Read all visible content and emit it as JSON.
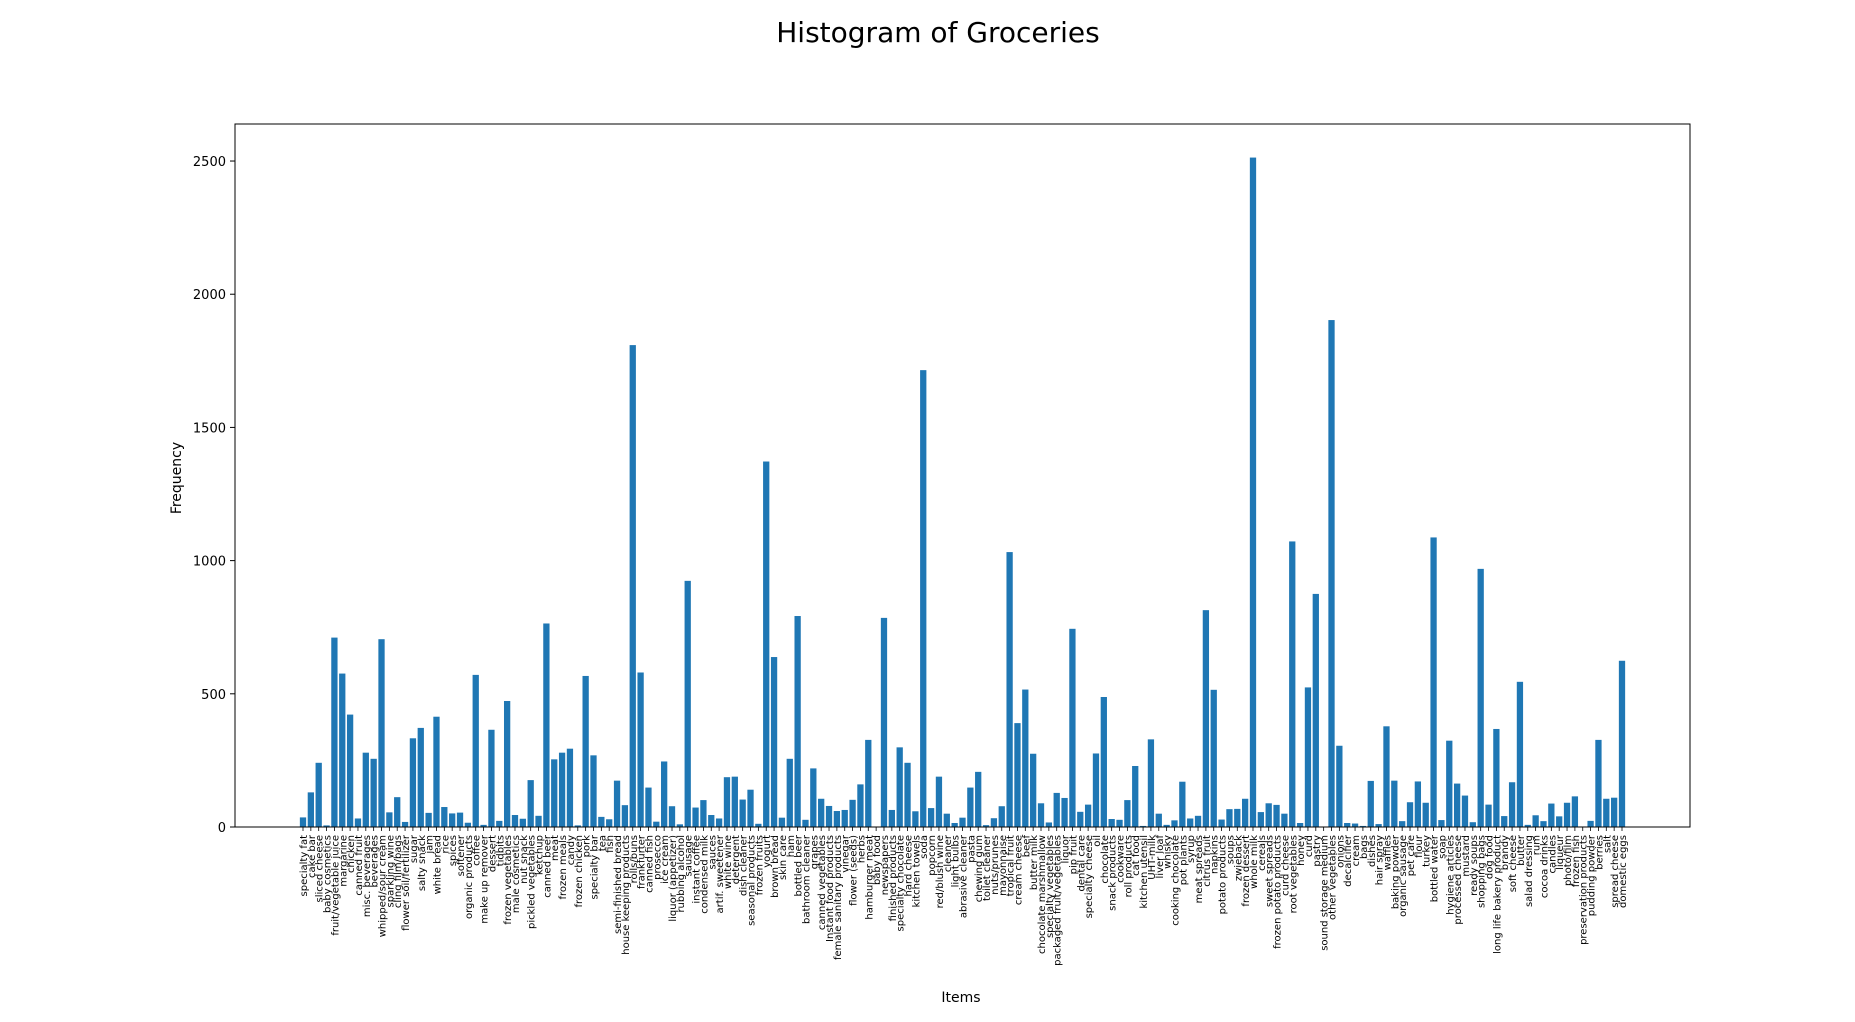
{
  "chart_data": {
    "type": "bar",
    "title": "Histogram of Groceries",
    "x_label": "Items",
    "y_label": "Frequency",
    "categories": [
      "specialty fat",
      "cake bar",
      "sliced cheese",
      "baby cosmetics",
      "fruit/vegetable juice",
      "margarine",
      "chicken",
      "canned fruit",
      "misc. beverages",
      "beverages",
      "whipped/sour cream",
      "sparkling wine",
      "cling film/bags",
      "flower soil/fertilizer",
      "sugar",
      "salty snack",
      "jam",
      "white bread",
      "rice",
      "spices",
      "softener",
      "organic products",
      "coffee",
      "make up remover",
      "dessert",
      "tidbits",
      "frozen vegetables",
      "male cosmetics",
      "nut snack",
      "pickled vegetables",
      "ketchup",
      "canned beer",
      "meat",
      "frozen meals",
      "candy",
      "frozen chicken",
      "pork",
      "specialty bar",
      "tea",
      "fish",
      "semi-finished bread",
      "house keeping products",
      "rolls/buns",
      "frankfurter",
      "canned fish",
      "prosecco",
      "ice cream",
      "liquor (appetizer)",
      "rubbing alcohol",
      "sausage",
      "instant coffee",
      "condensed milk",
      "sauces",
      "artif. sweetener",
      "white wine",
      "detergent",
      "dish cleaner",
      "seasonal products",
      "frozen fruits",
      "yogurt",
      "brown bread",
      "skin care",
      "ham",
      "bottled beer",
      "bathroom cleaner",
      "grapes",
      "canned vegetables",
      "Instant food products",
      "female sanitary products",
      "vinegar",
      "flower (seeds)",
      "herbs",
      "hamburger meat",
      "baby food",
      "newspapers",
      "finished products",
      "specialty chocolate",
      "hard cheese",
      "kitchen towels",
      "soda",
      "popcorn",
      "red/blush wine",
      "cleaner",
      "light bulbs",
      "abrasive cleaner",
      "pasta",
      "chewing gum",
      "toilet cleaner",
      "nuts/prunes",
      "mayonnaise",
      "tropical fruit",
      "cream cheese",
      "beef",
      "butter milk",
      "chocolate marshmallow",
      "specialty vegetables",
      "packaged fruit/vegetables",
      "liquor",
      "pip fruit",
      "dental care",
      "specialty cheese",
      "oil",
      "chocolate",
      "snack products",
      "cookware",
      "roll products",
      "cat food",
      "kitchen utensil",
      "UHT-milk",
      "liver loaf",
      "whisky",
      "cooking chocolate",
      "pot plants",
      "syrup",
      "meat spreads",
      "citrus fruit",
      "napkins",
      "potato products",
      "soups",
      "zwieback",
      "frozen dessert",
      "whole milk",
      "cereals",
      "sweet spreads",
      "frozen potato products",
      "curd cheese",
      "root vegetables",
      "honey",
      "curd",
      "pastry",
      "sound storage medium",
      "other vegetables",
      "onions",
      "decalcifier",
      "cream",
      "bags",
      "dishes",
      "hair spray",
      "waffles",
      "baking powder",
      "organic sausage",
      "pet care",
      "flour",
      "turkey",
      "bottled water",
      "soap",
      "hygiene articles",
      "processed cheese",
      "mustard",
      "ready soups",
      "shopping bags",
      "dog food",
      "long life bakery product",
      "brandy",
      "soft cheese",
      "butter",
      "salad dressing",
      "rum",
      "cocoa drinks",
      "candles",
      "liqueur",
      "photo/film",
      "frozen fish",
      "preservation products",
      "pudding powder",
      "berries",
      "salt",
      "spread cheese",
      "domestic eggs"
    ],
    "values": [
      36,
      130,
      241,
      6,
      711,
      576,
      422,
      32,
      279,
      256,
      705,
      55,
      112,
      19,
      333,
      372,
      53,
      414,
      75,
      51,
      54,
      16,
      571,
      8,
      365,
      23,
      473,
      45,
      31,
      176,
      42,
      764,
      254,
      279,
      294,
      6,
      567,
      269,
      38,
      29,
      174,
      82,
      1809,
      580,
      148,
      20,
      246,
      78,
      10,
      924,
      73,
      101,
      45,
      32,
      187,
      189,
      103,
      140,
      12,
      1372,
      638,
      35,
      256,
      792,
      27,
      220,
      106,
      79,
      60,
      64,
      102,
      160,
      327,
      1,
      785,
      64,
      299,
      241,
      59,
      1715,
      71,
      189,
      50,
      15,
      35,
      148,
      207,
      7,
      33,
      78,
      1032,
      390,
      516,
      275,
      89,
      17,
      128,
      109,
      744,
      57,
      84,
      276,
      488,
      30,
      27,
      101,
      229,
      4,
      329,
      50,
      8,
      25,
      170,
      32,
      42,
      814,
      515,
      28,
      67,
      68,
      106,
      2513,
      56,
      89,
      83,
      50,
      1072,
      15,
      524,
      875,
      1,
      1903,
      305,
      15,
      13,
      4,
      173,
      11,
      378,
      174,
      22,
      93,
      171,
      91,
      1087,
      26,
      324,
      163,
      118,
      18,
      969,
      84,
      368,
      41,
      168,
      545,
      8,
      44,
      22,
      88,
      40,
      91,
      115,
      2,
      23,
      327,
      106,
      110,
      624
    ],
    "color": "#1f77b4",
    "ylim": [
      0,
      2639
    ],
    "yticks": [
      0,
      500,
      1000,
      1500,
      2000,
      2500
    ],
    "grid": false
  }
}
